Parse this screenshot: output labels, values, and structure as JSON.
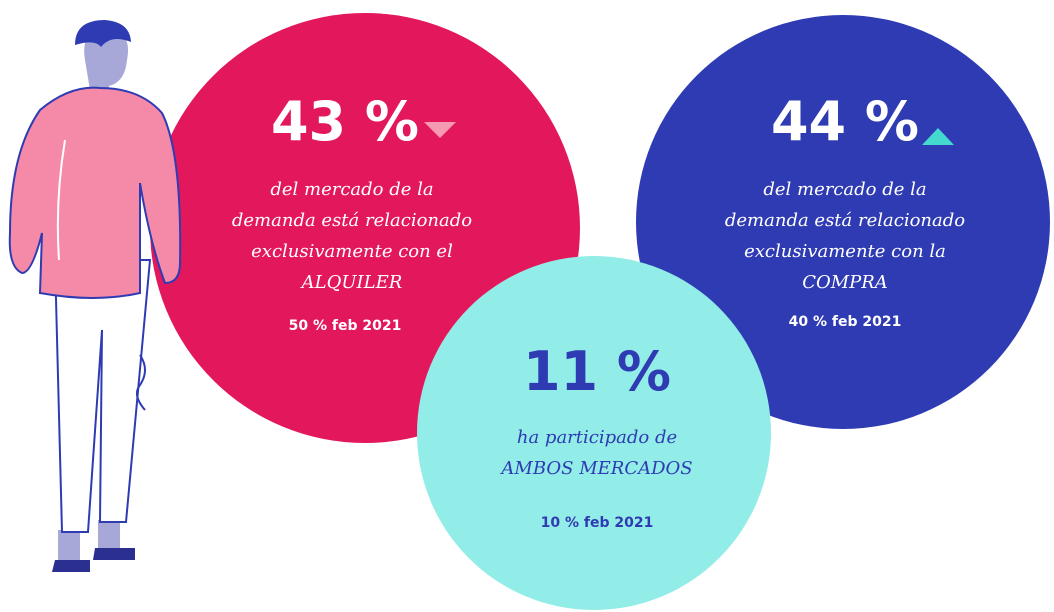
{
  "circles": [
    {
      "value": "43 %",
      "lines": [
        "del mercado de la",
        "demanda está relacionado",
        "exclusivamente con el",
        "ALQUILER"
      ],
      "comparison": "50 % feb 2021"
    },
    {
      "value": "44 %",
      "lines": [
        "del mercado de la",
        "demanda está relacionado",
        "exclusivamente con la",
        "COMPRA"
      ],
      "comparison": "40 % feb 2021"
    },
    {
      "value": "11 %",
      "lines": [
        "ha participado de",
        "AMBOS MERCADOS"
      ],
      "comparison": "10 % feb 2021"
    }
  ]
}
